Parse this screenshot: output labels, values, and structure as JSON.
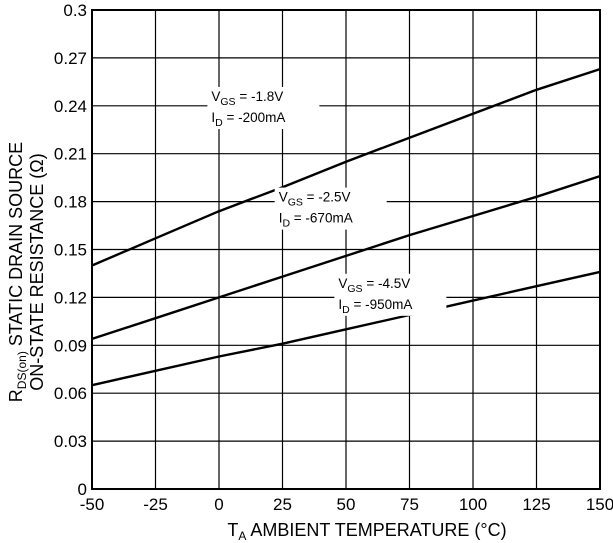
{
  "chart_data": {
    "type": "line",
    "title": "",
    "xlabel": {
      "main": "T",
      "sub": "A",
      "rest": " AMBIENT TEMPERATURE (°C)"
    },
    "ylabel": {
      "line1": {
        "main": "R",
        "sub": "DS(on)",
        "rest": " STATIC DRAIN SOURCE"
      },
      "line2": "ON-STATE RESISTANCE (Ω)"
    },
    "xlim": [
      -50,
      150
    ],
    "ylim": [
      0,
      0.3
    ],
    "x_ticks": [
      "-50",
      "-25",
      "0",
      "25",
      "50",
      "75",
      "100",
      "125",
      "150"
    ],
    "y_ticks": [
      "0",
      "0.03",
      "0.06",
      "0.09",
      "0.12",
      "0.15",
      "0.18",
      "0.21",
      "0.24",
      "0.27",
      "0.3"
    ],
    "grid": true,
    "legend": "none",
    "series": [
      {
        "label_line1": {
          "main": "V",
          "sub": "GS",
          "rest": " = -1.8V"
        },
        "label_line2": {
          "main": "I",
          "sub": "D",
          "rest": " = -200mA"
        },
        "x": [
          -50,
          -25,
          0,
          25,
          50,
          75,
          100,
          125,
          150
        ],
        "values": [
          0.14,
          0.157,
          0.174,
          0.189,
          0.205,
          0.22,
          0.235,
          0.25,
          0.263
        ]
      },
      {
        "label_line1": {
          "main": "V",
          "sub": "GS",
          "rest": " = -2.5V"
        },
        "label_line2": {
          "main": "I",
          "sub": "D",
          "rest": " = -670mA"
        },
        "x": [
          -50,
          -25,
          0,
          25,
          50,
          75,
          100,
          125,
          150
        ],
        "values": [
          0.094,
          0.107,
          0.12,
          0.133,
          0.146,
          0.159,
          0.171,
          0.183,
          0.196
        ]
      },
      {
        "label_line1": {
          "main": "V",
          "sub": "GS",
          "rest": " = -4.5V"
        },
        "label_line2": {
          "main": "I",
          "sub": "D",
          "rest": " = -950mA"
        },
        "x": [
          -50,
          -25,
          0,
          25,
          50,
          75,
          100,
          125,
          150
        ],
        "values": [
          0.065,
          0.074,
          0.083,
          0.091,
          0.1,
          0.109,
          0.118,
          0.127,
          0.136
        ]
      }
    ]
  }
}
